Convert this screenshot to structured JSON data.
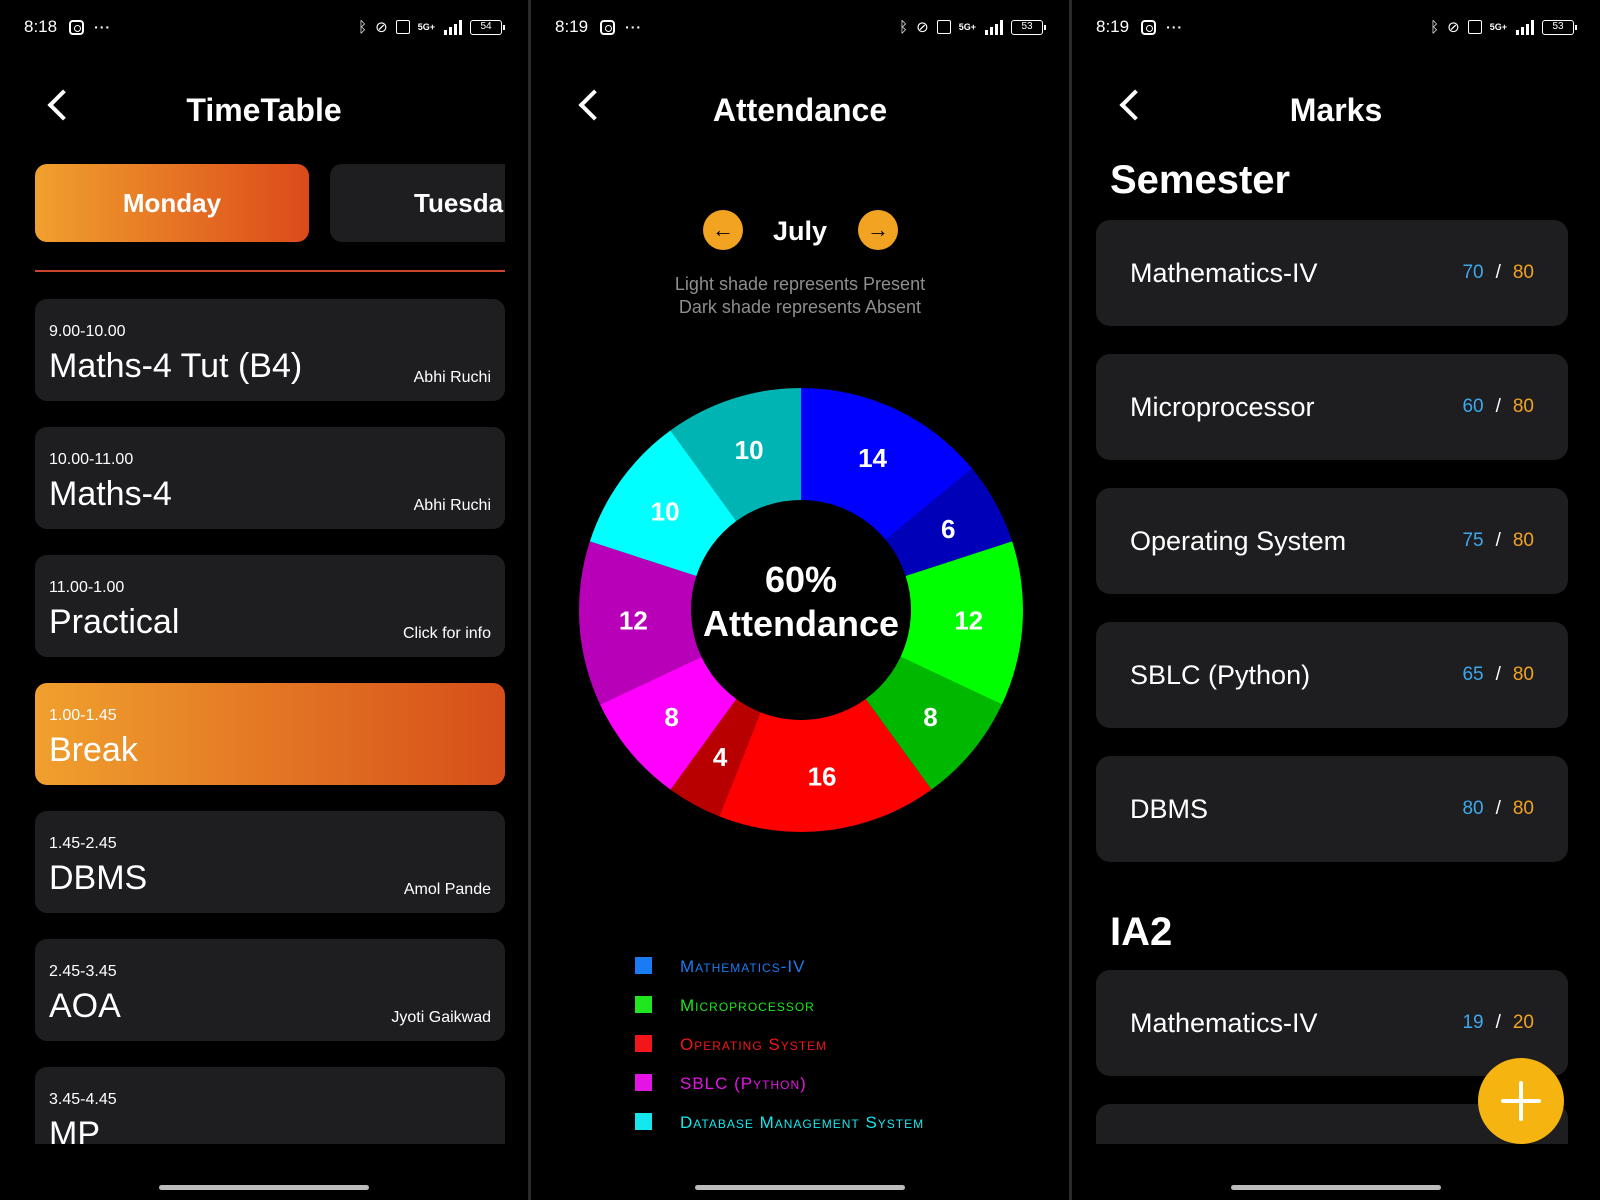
{
  "status_bars": [
    {
      "time": "8:18",
      "battery": "54"
    },
    {
      "time": "8:19",
      "battery": "53"
    },
    {
      "time": "8:19",
      "battery": "53"
    }
  ],
  "network_label": "5G+",
  "timetable": {
    "title": "TimeTable",
    "tabs": [
      "Monday",
      "Tuesda"
    ],
    "classes": [
      {
        "time": "9.00-10.00",
        "name": "Maths-4 Tut (B4)",
        "teacher": "Abhi Ruchi"
      },
      {
        "time": "10.00-11.00",
        "name": "Maths-4",
        "teacher": "Abhi Ruchi"
      },
      {
        "time": "11.00-1.00",
        "name": "Practical",
        "teacher": "Click for info"
      },
      {
        "time": "1.00-1.45",
        "name": "Break",
        "teacher": ""
      },
      {
        "time": "1.45-2.45",
        "name": "DBMS",
        "teacher": "Amol Pande"
      },
      {
        "time": "2.45-3.45",
        "name": "AOA",
        "teacher": "Jyoti Gaikwad"
      },
      {
        "time": "3.45-4.45",
        "name": "MP",
        "teacher": ""
      }
    ]
  },
  "attendance": {
    "title": "Attendance",
    "month": "July",
    "prev_icon": "arrow-left-icon",
    "next_icon": "arrow-right-icon",
    "note_line1": "Light shade represents Present",
    "note_line2": "Dark shade represents Absent",
    "center_line1": "60%",
    "center_line2": "Attendance",
    "legend": [
      {
        "label": "Mathematics-IV",
        "color": "#1a7cf2"
      },
      {
        "label": "Microprocessor",
        "color": "#1fe61f"
      },
      {
        "label": "Operating System",
        "color": "#f2161a"
      },
      {
        "label": "SBLC (Python)",
        "color": "#e414e4"
      },
      {
        "label": "Database Management System",
        "color": "#14e8ee"
      }
    ]
  },
  "chart_data": {
    "type": "pie",
    "center_label": "60% Attendance",
    "slices": [
      {
        "value": 14,
        "color": "#0000ff"
      },
      {
        "value": 6,
        "color": "#0000b8"
      },
      {
        "value": 12,
        "color": "#00ff00"
      },
      {
        "value": 8,
        "color": "#00b800"
      },
      {
        "value": 16,
        "color": "#ff0000"
      },
      {
        "value": 4,
        "color": "#b80000"
      },
      {
        "value": 8,
        "color": "#ff00ff"
      },
      {
        "value": 12,
        "color": "#b800b8"
      },
      {
        "value": 10,
        "color": "#00ffff"
      },
      {
        "value": 10,
        "color": "#00b4b4"
      }
    ]
  },
  "marks": {
    "title": "Marks",
    "semester_title": "Semester",
    "semester": [
      {
        "subject": "Mathematics-IV",
        "obtained": "70",
        "total": "80"
      },
      {
        "subject": "Microprocessor",
        "obtained": "60",
        "total": "80"
      },
      {
        "subject": "Operating System",
        "obtained": "75",
        "total": "80"
      },
      {
        "subject": "SBLC (Python)",
        "obtained": "65",
        "total": "80"
      },
      {
        "subject": "DBMS",
        "obtained": "80",
        "total": "80"
      }
    ],
    "ia2_title": "IA2",
    "ia2": [
      {
        "subject": "Mathematics-IV",
        "obtained": "19",
        "total": "20"
      },
      {
        "subject": "",
        "obtained": "",
        "total": ""
      }
    ],
    "slash": "/",
    "fab_icon": "plus-icon"
  }
}
